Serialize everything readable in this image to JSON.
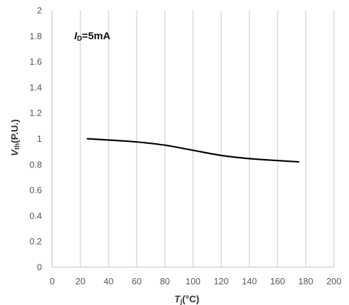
{
  "chart_data": {
    "type": "line",
    "title": "",
    "annotation": {
      "main": "I",
      "sub": "D",
      "rest": "=5mA"
    },
    "xlabel": {
      "main": "T",
      "sub": "j",
      "rest": "(°C)"
    },
    "ylabel": {
      "main": "V",
      "sub": "th",
      "rest": "(P.U.)"
    },
    "xlim": [
      0,
      200
    ],
    "ylim": [
      0,
      2
    ],
    "xticks": [
      0,
      20,
      40,
      60,
      80,
      100,
      120,
      140,
      160,
      180,
      200
    ],
    "xtick_labels": [
      "0",
      "20",
      "40",
      "60",
      "80",
      "100",
      "120",
      "140",
      "160",
      "180",
      "200"
    ],
    "yticks": [
      0,
      0.2,
      0.4,
      0.6,
      0.8,
      1.0,
      1.2,
      1.4,
      1.6,
      1.8,
      2.0
    ],
    "ytick_labels": [
      "0",
      "0.2",
      "0.4",
      "0.6",
      "0.8",
      "1",
      "1.2",
      "1.4",
      "1.6",
      "1.8",
      "2"
    ],
    "grid": {
      "vertical": true,
      "horizontal": false
    },
    "legend": "none",
    "series": [
      {
        "color": "#000000",
        "x": [
          25,
          40,
          60,
          80,
          100,
          120,
          140,
          160,
          175
        ],
        "y": [
          1.0,
          0.99,
          0.975,
          0.95,
          0.91,
          0.87,
          0.845,
          0.83,
          0.82
        ]
      }
    ],
    "colors": {
      "grid": "#c8c8c8",
      "axis": "#bfbfbf",
      "line": "#000000"
    }
  }
}
